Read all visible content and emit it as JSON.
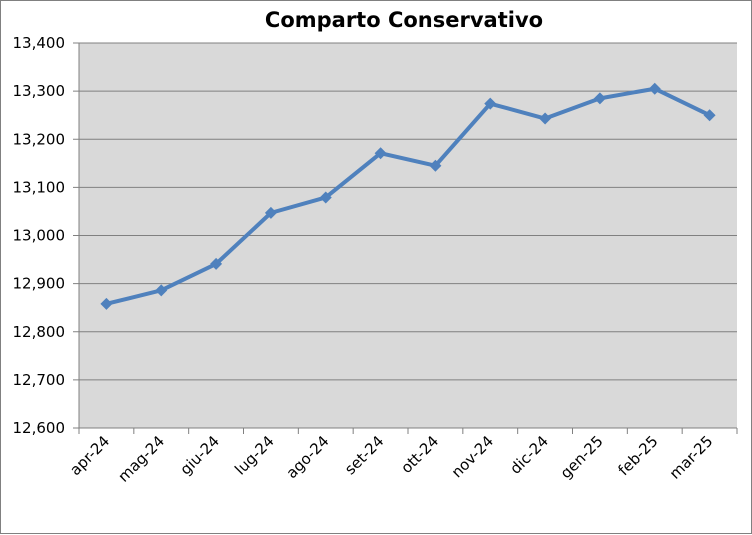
{
  "chart_data": {
    "type": "line",
    "title": "Comparto Conservativo",
    "xlabel": "",
    "ylabel": "",
    "categories": [
      "apr-24",
      "mag-24",
      "giu-24",
      "lug-24",
      "ago-24",
      "set-24",
      "ott-24",
      "nov-24",
      "dic-24",
      "gen-25",
      "feb-25",
      "mar-25"
    ],
    "series": [
      {
        "values": [
          12858,
          12886,
          12941,
          13047,
          13079,
          13171,
          13145,
          13274,
          13243,
          13285,
          13305,
          13250
        ]
      }
    ],
    "ylim": [
      12600,
      13400
    ],
    "yticks": [
      12600,
      12700,
      12800,
      12900,
      13000,
      13100,
      13200,
      13300,
      13400
    ],
    "ytick_labels": [
      "12,600",
      "12,700",
      "12,800",
      "12,900",
      "13,000",
      "13,100",
      "13,200",
      "13,300",
      "13,400"
    ],
    "grid": true,
    "legend": "none",
    "colors": {
      "line": "#4f81bd",
      "plot_background": "#d9d9d9",
      "gridline": "#808080"
    }
  }
}
